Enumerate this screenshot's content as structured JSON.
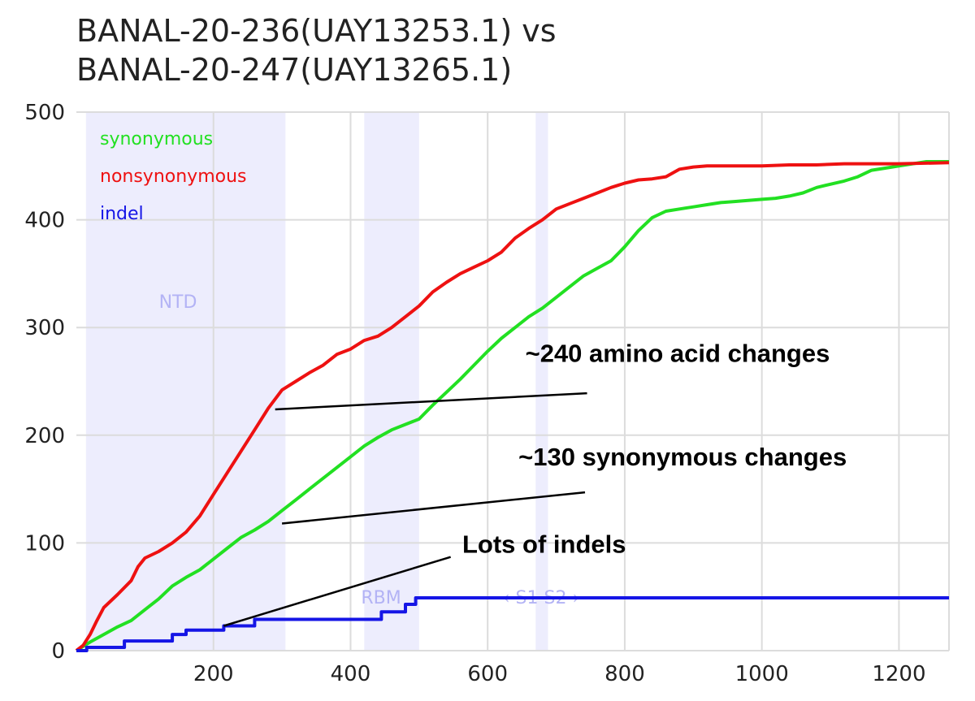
{
  "chart_data": {
    "type": "line",
    "title_lines": [
      "BANAL-20-236(UAY13253.1) vs",
      "BANAL-20-247(UAY13265.1)"
    ],
    "xlabel": "",
    "ylabel": "",
    "xlim": [
      0,
      1273
    ],
    "ylim": [
      0,
      500
    ],
    "x_ticks": [
      200,
      400,
      600,
      800,
      1000,
      1200
    ],
    "y_ticks": [
      0,
      100,
      200,
      300,
      400,
      500
    ],
    "grid": true,
    "legend_position": "top-left",
    "regions": [
      {
        "label": "NTD",
        "start": 14,
        "end": 305
      },
      {
        "label": "RBM",
        "start": 420,
        "end": 500
      },
      {
        "label": "",
        "start": 670,
        "end": 688
      }
    ],
    "cleavage_label": "‹ S1  S2 ›",
    "series": [
      {
        "name": "synonymous",
        "color": "#22e022",
        "points": [
          [
            0,
            0
          ],
          [
            20,
            8
          ],
          [
            40,
            15
          ],
          [
            60,
            22
          ],
          [
            80,
            28
          ],
          [
            100,
            38
          ],
          [
            120,
            48
          ],
          [
            140,
            60
          ],
          [
            160,
            68
          ],
          [
            180,
            75
          ],
          [
            200,
            85
          ],
          [
            220,
            95
          ],
          [
            240,
            105
          ],
          [
            260,
            112
          ],
          [
            280,
            120
          ],
          [
            300,
            130
          ],
          [
            320,
            140
          ],
          [
            340,
            150
          ],
          [
            360,
            160
          ],
          [
            380,
            170
          ],
          [
            400,
            180
          ],
          [
            420,
            190
          ],
          [
            440,
            198
          ],
          [
            460,
            205
          ],
          [
            480,
            210
          ],
          [
            500,
            215
          ],
          [
            520,
            228
          ],
          [
            540,
            240
          ],
          [
            560,
            252
          ],
          [
            580,
            265
          ],
          [
            600,
            278
          ],
          [
            620,
            290
          ],
          [
            640,
            300
          ],
          [
            660,
            310
          ],
          [
            680,
            318
          ],
          [
            700,
            328
          ],
          [
            720,
            338
          ],
          [
            740,
            348
          ],
          [
            760,
            355
          ],
          [
            780,
            362
          ],
          [
            800,
            375
          ],
          [
            820,
            390
          ],
          [
            840,
            402
          ],
          [
            860,
            408
          ],
          [
            880,
            410
          ],
          [
            900,
            412
          ],
          [
            920,
            414
          ],
          [
            940,
            416
          ],
          [
            960,
            417
          ],
          [
            980,
            418
          ],
          [
            1000,
            419
          ],
          [
            1020,
            420
          ],
          [
            1040,
            422
          ],
          [
            1060,
            425
          ],
          [
            1080,
            430
          ],
          [
            1100,
            433
          ],
          [
            1120,
            436
          ],
          [
            1140,
            440
          ],
          [
            1160,
            446
          ],
          [
            1180,
            448
          ],
          [
            1200,
            450
          ],
          [
            1220,
            452
          ],
          [
            1240,
            454
          ],
          [
            1273,
            454
          ]
        ]
      },
      {
        "name": "nonsynonymous",
        "color": "#ee1111",
        "points": [
          [
            0,
            0
          ],
          [
            10,
            5
          ],
          [
            20,
            15
          ],
          [
            30,
            28
          ],
          [
            40,
            40
          ],
          [
            60,
            52
          ],
          [
            80,
            65
          ],
          [
            90,
            78
          ],
          [
            100,
            86
          ],
          [
            120,
            92
          ],
          [
            140,
            100
          ],
          [
            160,
            110
          ],
          [
            180,
            125
          ],
          [
            200,
            145
          ],
          [
            220,
            165
          ],
          [
            240,
            185
          ],
          [
            260,
            205
          ],
          [
            280,
            225
          ],
          [
            300,
            242
          ],
          [
            320,
            250
          ],
          [
            340,
            258
          ],
          [
            360,
            265
          ],
          [
            380,
            275
          ],
          [
            400,
            280
          ],
          [
            420,
            288
          ],
          [
            440,
            292
          ],
          [
            460,
            300
          ],
          [
            480,
            310
          ],
          [
            500,
            320
          ],
          [
            520,
            333
          ],
          [
            540,
            342
          ],
          [
            560,
            350
          ],
          [
            580,
            356
          ],
          [
            600,
            362
          ],
          [
            620,
            370
          ],
          [
            640,
            383
          ],
          [
            660,
            392
          ],
          [
            680,
            400
          ],
          [
            700,
            410
          ],
          [
            720,
            415
          ],
          [
            740,
            420
          ],
          [
            760,
            425
          ],
          [
            780,
            430
          ],
          [
            800,
            434
          ],
          [
            820,
            437
          ],
          [
            840,
            438
          ],
          [
            860,
            440
          ],
          [
            880,
            447
          ],
          [
            900,
            449
          ],
          [
            920,
            450
          ],
          [
            960,
            450
          ],
          [
            1000,
            450
          ],
          [
            1040,
            451
          ],
          [
            1080,
            451
          ],
          [
            1120,
            452
          ],
          [
            1160,
            452
          ],
          [
            1200,
            452
          ],
          [
            1273,
            453
          ]
        ]
      },
      {
        "name": "indel",
        "color": "#1515e6",
        "points": [
          [
            0,
            0
          ],
          [
            15,
            0
          ],
          [
            15,
            3
          ],
          [
            70,
            3
          ],
          [
            70,
            9
          ],
          [
            140,
            9
          ],
          [
            140,
            15
          ],
          [
            160,
            15
          ],
          [
            160,
            19
          ],
          [
            215,
            19
          ],
          [
            215,
            23
          ],
          [
            260,
            23
          ],
          [
            260,
            29
          ],
          [
            445,
            29
          ],
          [
            445,
            36
          ],
          [
            480,
            36
          ],
          [
            480,
            43
          ],
          [
            495,
            43
          ],
          [
            495,
            49
          ],
          [
            1273,
            49
          ]
        ]
      }
    ],
    "annotations": [
      {
        "text": "~240 amino acid changes",
        "target": [
          290,
          224
        ],
        "line_end": [
          745,
          239
        ],
        "text_pos": [
          655,
          268
        ]
      },
      {
        "text": "~130 synonymous changes",
        "target": [
          300,
          118
        ],
        "line_end": [
          742,
          147
        ],
        "text_pos": [
          645,
          172
        ]
      },
      {
        "text": "Lots of indels",
        "target": [
          215,
          23
        ],
        "line_end": [
          546,
          87
        ],
        "text_pos": [
          563,
          91
        ]
      }
    ]
  }
}
